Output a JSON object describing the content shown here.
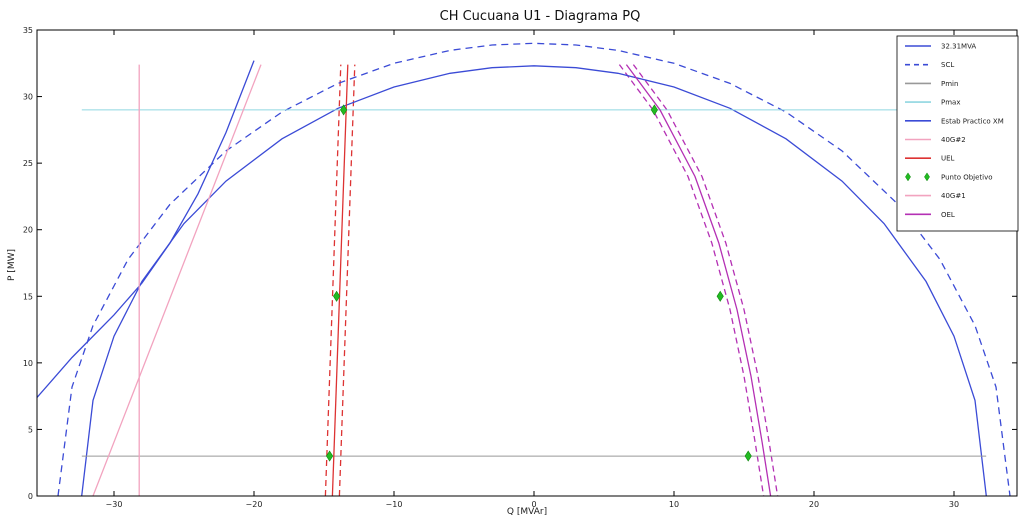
{
  "chart_data": {
    "type": "line",
    "title": "CH Cucuana U1 - Diagrama PQ",
    "xlabel": "Q [MVAr]",
    "ylabel": "P [MW]",
    "xlim": [
      -35.5,
      34.5
    ],
    "ylim": [
      0,
      35
    ],
    "xticks": [
      -30,
      -20,
      -10,
      0,
      10,
      20,
      30
    ],
    "yticks": [
      0,
      5,
      10,
      15,
      20,
      25,
      30,
      35
    ],
    "grid": false,
    "legend_position": "top-right",
    "series": [
      {
        "name": "32.31MVA",
        "color": "#3b4bd6",
        "style": "solid",
        "x": [
          -32.31,
          -31.5,
          -30,
          -28,
          -25,
          -22,
          -18,
          -14,
          -10,
          -6,
          -3,
          0,
          3,
          6,
          10,
          14,
          18,
          22,
          25,
          28,
          30,
          31.5,
          32.31
        ],
        "y": [
          0,
          7.18,
          12.0,
          16.12,
          20.47,
          23.65,
          26.83,
          29.12,
          30.72,
          31.75,
          32.17,
          32.31,
          32.17,
          31.75,
          30.72,
          29.12,
          26.83,
          23.65,
          20.47,
          16.12,
          12.0,
          7.18,
          0
        ]
      },
      {
        "name": "SCL",
        "color": "#3b4bd6",
        "style": "dashed",
        "x": [
          -34.0,
          -33.0,
          -31.5,
          -29,
          -26,
          -22,
          -18,
          -14,
          -10,
          -6,
          -3,
          0,
          3,
          6,
          10,
          14,
          18,
          22,
          26,
          29,
          31.5,
          33.0,
          34.0
        ],
        "y": [
          0,
          8.19,
          12.8,
          17.76,
          21.91,
          25.92,
          28.84,
          30.99,
          32.5,
          33.47,
          33.87,
          34.0,
          33.87,
          33.47,
          32.5,
          30.99,
          28.84,
          25.92,
          21.91,
          17.76,
          12.8,
          8.19,
          0
        ]
      },
      {
        "name": "Pmin",
        "color": "#999999",
        "style": "solid",
        "x": [
          -32.3,
          32.3
        ],
        "y": [
          3,
          3
        ]
      },
      {
        "name": "Pmax",
        "color": "#8fd6e0",
        "style": "solid",
        "x": [
          -32.3,
          32.3
        ],
        "y": [
          29,
          29
        ]
      },
      {
        "name": "Estab Practico XM",
        "color": "#3b4bd6",
        "style": "solid",
        "x": [
          -35.5,
          -33,
          -30,
          -28,
          -26,
          -24,
          -22,
          -20
        ],
        "y": [
          7.4,
          10.4,
          13.6,
          16.0,
          19.0,
          22.7,
          27.3,
          32.7
        ]
      },
      {
        "name": "40G#2",
        "color": "#f2a3bf",
        "style": "solid",
        "x": [
          -31.5,
          -19.5
        ],
        "y": [
          0,
          32.4
        ]
      },
      {
        "name": "UEL",
        "color": "#dd3333",
        "style": "solid",
        "x": [
          -14.4,
          -13.3
        ],
        "y": [
          0,
          32.4
        ]
      },
      {
        "name": "40G#1",
        "color": "#f2a3bf",
        "style": "solid",
        "x": [
          -28.2,
          -28.2
        ],
        "y": [
          0,
          32.4
        ]
      },
      {
        "name": "OEL",
        "color": "#b430b4",
        "style": "solid",
        "x": [
          6.6,
          9.0,
          11.5,
          13.2,
          14.5,
          15.5,
          16.3,
          16.9
        ],
        "y": [
          32.4,
          29.0,
          24.0,
          19.0,
          14.0,
          9.0,
          4.0,
          0
        ]
      }
    ],
    "band_series": [
      {
        "color": "#dd3333",
        "style": "dashed",
        "x": [
          -14.9,
          -13.8
        ],
        "y": [
          0,
          32.4
        ]
      },
      {
        "color": "#dd3333",
        "style": "dashed",
        "x": [
          -13.9,
          -12.8
        ],
        "y": [
          0,
          32.4
        ]
      },
      {
        "color": "#b430b4",
        "style": "dashed",
        "x": [
          6.1,
          8.5,
          11.0,
          12.7,
          14.0,
          15.0,
          15.8,
          16.4
        ],
        "y": [
          32.4,
          29.0,
          24.0,
          19.0,
          14.0,
          9.0,
          4.0,
          0
        ]
      },
      {
        "color": "#b430b4",
        "style": "dashed",
        "x": [
          7.1,
          9.5,
          12.0,
          13.7,
          15.0,
          16.0,
          16.8,
          17.4
        ],
        "y": [
          32.4,
          29.0,
          24.0,
          19.0,
          14.0,
          9.0,
          4.0,
          0
        ]
      }
    ],
    "points": {
      "name": "Punto Objetivo",
      "color": "#22bb22",
      "x": [
        -13.6,
        -14.1,
        -14.6,
        8.6,
        13.3,
        15.3
      ],
      "y": [
        29,
        15,
        3,
        29,
        15,
        3
      ]
    },
    "legend": [
      {
        "label": "32.31MVA",
        "color": "#3b4bd6",
        "style": "solid"
      },
      {
        "label": "SCL",
        "color": "#3b4bd6",
        "style": "dashed"
      },
      {
        "label": "Pmin",
        "color": "#999999",
        "style": "solid"
      },
      {
        "label": "Pmax",
        "color": "#8fd6e0",
        "style": "solid"
      },
      {
        "label": "Estab Practico XM",
        "color": "#3b4bd6",
        "style": "solid"
      },
      {
        "label": "40G#2",
        "color": "#f2a3bf",
        "style": "solid"
      },
      {
        "label": "UEL",
        "color": "#dd3333",
        "style": "solid"
      },
      {
        "label": "Punto Objetivo",
        "color": "#22bb22",
        "style": "marker"
      },
      {
        "label": "40G#1",
        "color": "#f2a3bf",
        "style": "solid"
      },
      {
        "label": "OEL",
        "color": "#b430b4",
        "style": "solid"
      }
    ]
  }
}
